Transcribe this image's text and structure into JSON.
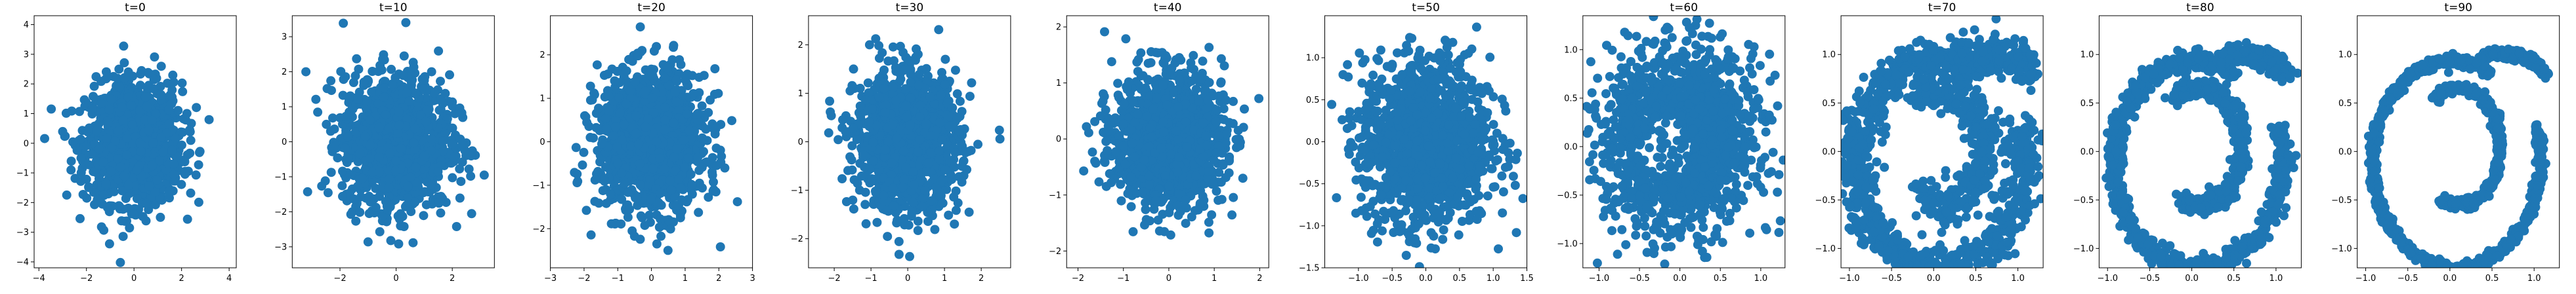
{
  "figure": {
    "background": "#ffffff",
    "marker_color": "#1f77b4"
  },
  "chart_data": [
    {
      "type": "scatter",
      "title": "t=0",
      "distribution": "isotropic-gaussian",
      "spread": 1.0,
      "xlim": [
        -4.2,
        4.3
      ],
      "ylim": [
        -4.2,
        4.3
      ],
      "xticks": [
        -4,
        -2,
        0,
        2,
        4
      ],
      "yticks": [
        -4,
        -3,
        -2,
        -1,
        0,
        1,
        2,
        3,
        4
      ],
      "grid": false,
      "legend": "none"
    },
    {
      "type": "scatter",
      "title": "t=10",
      "distribution": "isotropic-gaussian",
      "spread": 0.95,
      "xlim": [
        -3.7,
        3.5
      ],
      "ylim": [
        -3.6,
        3.6
      ],
      "xticks": [
        -2,
        0,
        2
      ],
      "yticks": [
        -3,
        -2,
        -1,
        0,
        1,
        2,
        3
      ],
      "grid": false,
      "legend": "none"
    },
    {
      "type": "scatter",
      "title": "t=20",
      "distribution": "isotropic-gaussian",
      "spread": 0.8,
      "xlim": [
        -3.0,
        3.0
      ],
      "ylim": [
        -2.9,
        2.9
      ],
      "xticks": [
        -3,
        -2,
        -1,
        0,
        1,
        2,
        3
      ],
      "yticks": [
        -2,
        -1,
        0,
        1,
        2
      ],
      "grid": false,
      "legend": "none"
    },
    {
      "type": "scatter",
      "title": "t=30",
      "distribution": "isotropic-gaussian",
      "spread": 0.7,
      "xlim": [
        -2.7,
        2.8
      ],
      "ylim": [
        -2.6,
        2.6
      ],
      "xticks": [
        -2,
        -1,
        0,
        1,
        2
      ],
      "yticks": [
        -2,
        -1,
        0,
        1,
        2
      ],
      "grid": false,
      "legend": "none"
    },
    {
      "type": "scatter",
      "title": "t=40",
      "distribution": "isotropic-gaussian",
      "spread": 0.6,
      "xlim": [
        -2.25,
        2.2
      ],
      "ylim": [
        -2.3,
        2.2
      ],
      "xticks": [
        -2,
        -1,
        0,
        1,
        2
      ],
      "yticks": [
        -2,
        -1,
        0,
        1,
        2
      ],
      "grid": false,
      "legend": "none"
    },
    {
      "type": "scatter",
      "title": "t=50",
      "distribution": "blob",
      "spread": 0.5,
      "xlim": [
        -1.5,
        1.5
      ],
      "ylim": [
        -1.5,
        1.5
      ],
      "xticks": [
        -1.0,
        -0.5,
        0.0,
        0.5,
        1.0,
        1.5
      ],
      "yticks": [
        -1.5,
        -1.0,
        -0.5,
        0.0,
        0.5,
        1.0
      ],
      "grid": false,
      "legend": "none"
    },
    {
      "type": "scatter",
      "title": "t=60",
      "distribution": "blob-with-hole",
      "spread": 0.45,
      "xlim": [
        -1.2,
        1.3
      ],
      "ylim": [
        -1.25,
        1.35
      ],
      "xticks": [
        -1.0,
        -0.5,
        0.0,
        0.5,
        1.0
      ],
      "yticks": [
        -1.0,
        -0.5,
        0.0,
        0.5,
        1.0
      ],
      "grid": false,
      "legend": "none"
    },
    {
      "type": "scatter",
      "title": "t=70",
      "distribution": "spiral",
      "spread": 0.1,
      "xlim": [
        -1.1,
        1.3
      ],
      "ylim": [
        -1.2,
        1.4
      ],
      "xticks": [
        -1.0,
        -0.5,
        0.0,
        0.5,
        1.0
      ],
      "yticks": [
        -1.0,
        -0.5,
        0.0,
        0.5,
        1.0
      ],
      "grid": false,
      "legend": "none"
    },
    {
      "type": "scatter",
      "title": "t=80",
      "distribution": "spiral",
      "spread": 0.05,
      "xlim": [
        -1.1,
        1.3
      ],
      "ylim": [
        -1.2,
        1.4
      ],
      "xticks": [
        -1.0,
        -0.5,
        0.0,
        0.5,
        1.0
      ],
      "yticks": [
        -1.0,
        -0.5,
        0.0,
        0.5,
        1.0
      ],
      "grid": false,
      "legend": "none"
    },
    {
      "type": "scatter",
      "title": "t=90",
      "distribution": "spiral",
      "spread": 0.025,
      "xlim": [
        -1.1,
        1.3
      ],
      "ylim": [
        -1.2,
        1.4
      ],
      "xticks": [
        -1.0,
        -0.5,
        0.0,
        0.5,
        1.0
      ],
      "yticks": [
        -1.0,
        -0.5,
        0.0,
        0.5,
        1.0
      ],
      "grid": false,
      "legend": "none"
    }
  ]
}
